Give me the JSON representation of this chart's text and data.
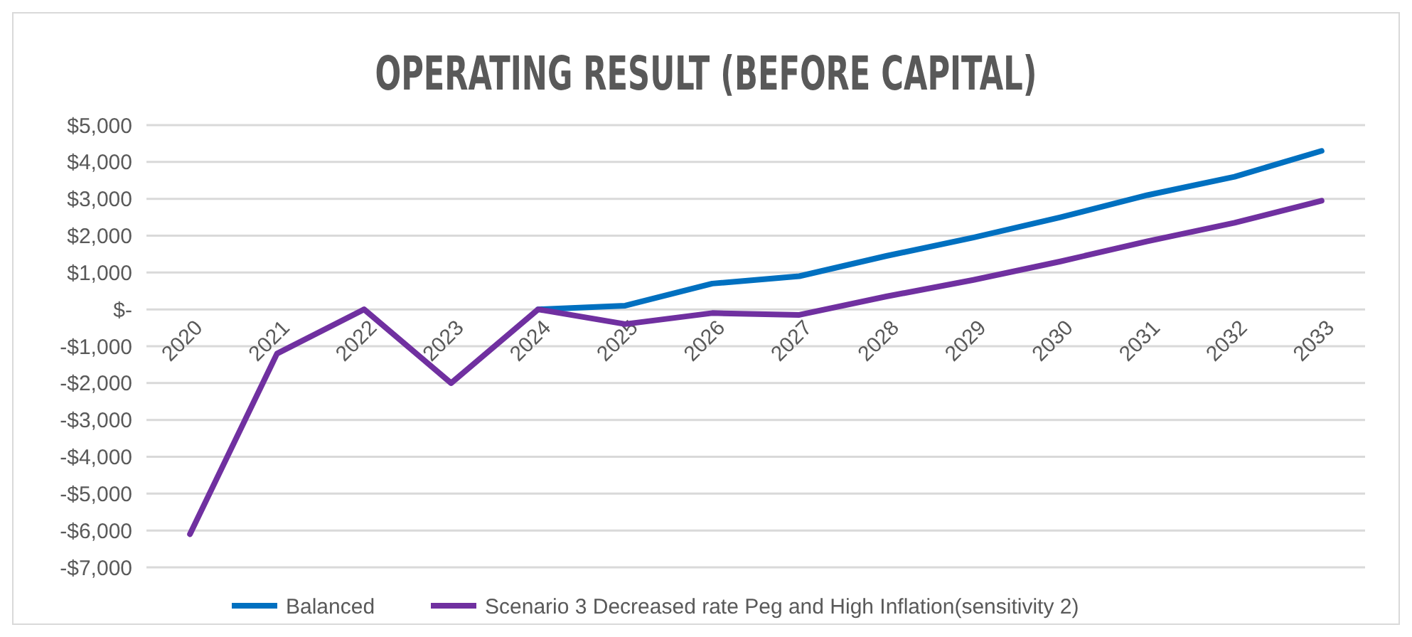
{
  "chart_data": {
    "type": "line",
    "title": "OPERATING RESULT (BEFORE CAPITAL)",
    "categories": [
      "2020",
      "2021",
      "2022",
      "2023",
      "2024",
      "2025",
      "2026",
      "2027",
      "2028",
      "2029",
      "2030",
      "2031",
      "2032",
      "2033"
    ],
    "series": [
      {
        "name": "Balanced",
        "color": "#0070c0",
        "values": [
          null,
          null,
          null,
          null,
          0,
          100,
          700,
          900,
          1450,
          1950,
          2500,
          3100,
          3600,
          4300
        ]
      },
      {
        "name": "Scenario 3 Decreased rate Peg and High Inflation(sensitivity 2)",
        "color": "#7030a0",
        "values": [
          -6100,
          -1200,
          0,
          -2000,
          0,
          -400,
          -100,
          -150,
          350,
          800,
          1300,
          1850,
          2350,
          2950
        ]
      }
    ],
    "ylim": [
      -7000,
      5000
    ],
    "yticks": [
      {
        "value": 5000,
        "label": "$5,000"
      },
      {
        "value": 4000,
        "label": "$4,000"
      },
      {
        "value": 3000,
        "label": "$3,000"
      },
      {
        "value": 2000,
        "label": "$2,000"
      },
      {
        "value": 1000,
        "label": "$1,000"
      },
      {
        "value": 0,
        "label": "$-"
      },
      {
        "value": -1000,
        "label": "-$1,000"
      },
      {
        "value": -2000,
        "label": "-$2,000"
      },
      {
        "value": -3000,
        "label": "-$3,000"
      },
      {
        "value": -4000,
        "label": "-$4,000"
      },
      {
        "value": -5000,
        "label": "-$5,000"
      },
      {
        "value": -6000,
        "label": "-$6,000"
      },
      {
        "value": -7000,
        "label": "-$7,000"
      }
    ],
    "grid": "y",
    "legend": "bottom",
    "marker": "none",
    "line_style": "solid"
  }
}
